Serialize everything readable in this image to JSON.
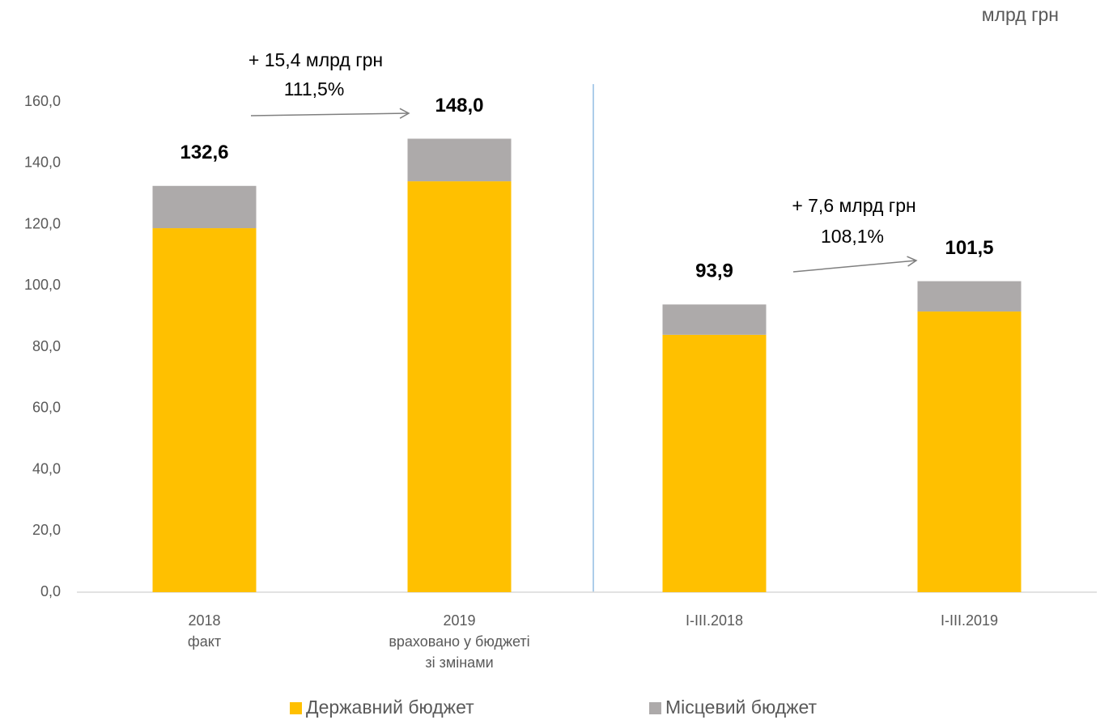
{
  "chart_data": {
    "type": "stacked_bar",
    "unit_label": "млрд грн",
    "categories": [
      [
        "2018",
        "факт"
      ],
      [
        "2019",
        "враховано у бюджеті",
        "зі змінами"
      ],
      [
        "I-III.2018"
      ],
      [
        "I-III.2019"
      ]
    ],
    "series": [
      {
        "name": "Державний бюджет",
        "color": "#FFC000",
        "values": [
          118.8,
          134.1,
          84.0,
          91.6
        ]
      },
      {
        "name": "Місцевий бюджет",
        "color": "#ADAAAA",
        "values": [
          13.8,
          13.9,
          9.9,
          9.9
        ]
      }
    ],
    "totals": [
      132.6,
      148.0,
      93.9,
      101.5
    ],
    "total_labels": [
      "132,6",
      "148,0",
      "93,9",
      "101,5"
    ],
    "annotations": [
      "+ 15,4 млрд грн",
      "111,5%",
      "+ 7,6 млрд грн",
      "108,1%"
    ],
    "ylim": [
      0,
      160
    ],
    "yticks": [
      {
        "value": 0,
        "label": "0,0"
      },
      {
        "value": 20,
        "label": "20,0"
      },
      {
        "value": 40,
        "label": "40,0"
      },
      {
        "value": 60,
        "label": "60,0"
      },
      {
        "value": 80,
        "label": "80,0"
      },
      {
        "value": 100,
        "label": "100,0"
      },
      {
        "value": 120,
        "label": "120,0"
      },
      {
        "value": 140,
        "label": "140,0"
      },
      {
        "value": 160,
        "label": "160,0"
      }
    ],
    "legend": "bottom"
  }
}
